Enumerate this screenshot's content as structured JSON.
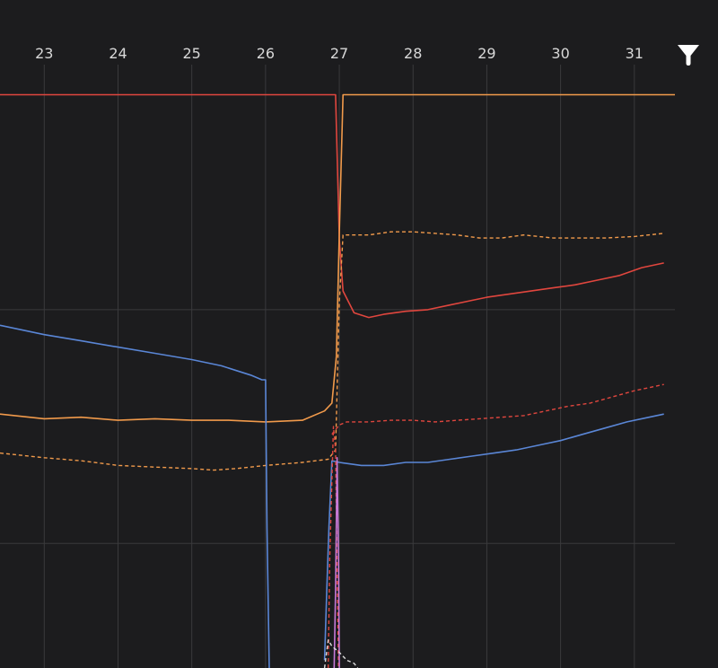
{
  "chart_data": {
    "type": "line",
    "x_ticks": [
      "23",
      "24",
      "25",
      "26",
      "27",
      "28",
      "29",
      "30",
      "31"
    ],
    "x_tick_values": [
      23,
      24,
      25,
      26,
      27,
      28,
      29,
      30,
      31
    ],
    "xlim": [
      22.4,
      31.55
    ],
    "ylim": [
      -0.3,
      3.55
    ],
    "grid": true,
    "colors": {
      "background": "#1c1c1e",
      "grid": "#3a3a3c",
      "red": "#e0463e",
      "orange": "#f19a4b",
      "blue": "#5a86d6",
      "pink": "#c77ad8",
      "white": "#dcdcdc"
    },
    "series": [
      {
        "color": "red",
        "style": "solid",
        "x": [
          22.4,
          26.95,
          26.97,
          27.0,
          27.05,
          27.2,
          27.4,
          27.6,
          27.9,
          28.2,
          28.5,
          28.8,
          29.0,
          29.3,
          29.6,
          29.9,
          30.2,
          30.5,
          30.8,
          31.1,
          31.4
        ],
        "y": [
          3.38,
          3.38,
          3.0,
          2.45,
          2.12,
          1.98,
          1.95,
          1.97,
          1.99,
          2.0,
          2.03,
          2.06,
          2.08,
          2.1,
          2.12,
          2.14,
          2.16,
          2.19,
          2.22,
          2.27,
          2.3
        ]
      },
      {
        "color": "orange",
        "style": "solid",
        "x": [
          22.4,
          23.0,
          23.5,
          24.0,
          24.5,
          25.0,
          25.5,
          26.0,
          26.5,
          26.8,
          26.9,
          26.96,
          27.0,
          27.05,
          31.55
        ],
        "y": [
          1.33,
          1.3,
          1.31,
          1.29,
          1.3,
          1.29,
          1.29,
          1.28,
          1.29,
          1.35,
          1.4,
          1.7,
          2.5,
          3.38,
          3.38
        ]
      },
      {
        "color": "orange",
        "style": "dashed",
        "x": [
          22.4,
          23.0,
          23.5,
          24.0,
          24.5,
          25.0,
          25.3,
          25.6,
          26.0,
          26.5,
          26.85,
          26.95,
          27.0,
          27.05,
          27.4,
          27.7,
          28.0,
          28.3,
          28.6,
          28.9,
          29.2,
          29.5,
          29.9,
          30.2,
          30.6,
          31.0,
          31.4
        ],
        "y": [
          1.08,
          1.05,
          1.03,
          1.0,
          0.99,
          0.98,
          0.97,
          0.98,
          1.0,
          1.02,
          1.04,
          1.1,
          2.05,
          2.48,
          2.48,
          2.5,
          2.5,
          2.49,
          2.48,
          2.46,
          2.46,
          2.48,
          2.46,
          2.46,
          2.46,
          2.47,
          2.49
        ]
      },
      {
        "color": "red",
        "style": "dashed",
        "x": [
          26.9,
          27.0,
          27.1,
          27.4,
          27.7,
          28.0,
          28.3,
          28.6,
          28.9,
          29.2,
          29.5,
          29.8,
          30.1,
          30.4,
          30.7,
          31.0,
          31.4
        ],
        "y": [
          1.2,
          1.26,
          1.28,
          1.28,
          1.29,
          1.29,
          1.28,
          1.29,
          1.3,
          1.31,
          1.32,
          1.35,
          1.38,
          1.4,
          1.44,
          1.48,
          1.52
        ]
      },
      {
        "color": "blue",
        "style": "solid",
        "x": [
          22.4,
          23.0,
          23.5,
          24.0,
          24.5,
          25.0,
          25.4,
          25.8,
          25.95,
          26.0,
          26.02,
          26.05
        ],
        "y": [
          1.9,
          1.84,
          1.8,
          1.76,
          1.72,
          1.68,
          1.64,
          1.58,
          1.55,
          1.55,
          0.6,
          -0.3
        ]
      },
      {
        "color": "blue",
        "style": "solid",
        "x": [
          26.8,
          26.83,
          26.86,
          26.9,
          27.0,
          27.3,
          27.6,
          27.9,
          28.2,
          28.5,
          28.8,
          29.1,
          29.4,
          29.7,
          30.0,
          30.3,
          30.6,
          30.9,
          31.2,
          31.4
        ],
        "y": [
          -0.25,
          0.2,
          0.6,
          1.03,
          1.02,
          1.0,
          1.0,
          1.02,
          1.02,
          1.04,
          1.06,
          1.08,
          1.1,
          1.13,
          1.16,
          1.2,
          1.24,
          1.28,
          1.31,
          1.33
        ]
      },
      {
        "color": "red",
        "style": "dashed",
        "x": [
          26.85,
          26.87,
          26.92,
          26.95,
          26.97,
          26.99
        ],
        "y": [
          -0.3,
          0.4,
          1.25,
          1.1,
          0.3,
          -0.3
        ]
      },
      {
        "color": "pink",
        "style": "solid",
        "x": [
          26.93,
          26.95,
          26.97,
          26.99,
          27.0
        ],
        "y": [
          -0.3,
          0.2,
          1.05,
          0.4,
          -0.3
        ]
      },
      {
        "color": "white",
        "style": "dashed",
        "x": [
          26.8,
          26.85,
          26.9,
          27.0,
          27.1,
          27.2,
          27.25
        ],
        "y": [
          -0.3,
          -0.12,
          -0.16,
          -0.2,
          -0.25,
          -0.27,
          -0.3
        ]
      }
    ]
  }
}
